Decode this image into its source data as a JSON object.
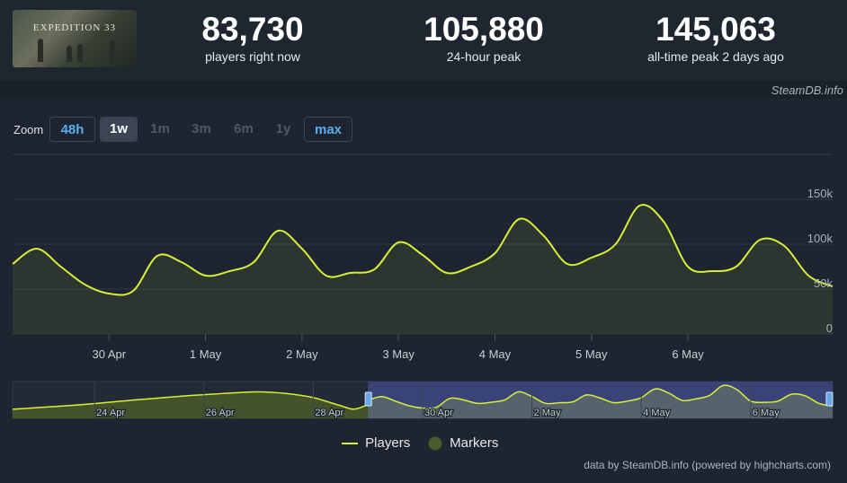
{
  "header": {
    "game_image_caption": "EXPEDITION 33",
    "stats": [
      {
        "value": "83,730",
        "label": "players right now"
      },
      {
        "value": "105,880",
        "label": "24-hour peak"
      },
      {
        "value": "145,063",
        "label": "all-time peak 2 days ago"
      }
    ],
    "site_tag": "SteamDB.info"
  },
  "zoom": {
    "label": "Zoom",
    "buttons": [
      {
        "label": "48h",
        "state": "enabled"
      },
      {
        "label": "1w",
        "state": "selected"
      },
      {
        "label": "1m",
        "state": "disabled"
      },
      {
        "label": "3m",
        "state": "disabled"
      },
      {
        "label": "6m",
        "state": "disabled"
      },
      {
        "label": "1y",
        "state": "disabled"
      },
      {
        "label": "max",
        "state": "enabled"
      }
    ]
  },
  "legend": {
    "players": "Players",
    "markers": "Markers"
  },
  "credit": "data by SteamDB.info (powered by highcharts.com)",
  "colors": {
    "line": "#d6f03a",
    "navigator_bg": "#3a4378",
    "navigator_fill": "#4a5a2a",
    "marker": "#4a5a2a"
  },
  "chart_data": {
    "type": "line",
    "series": [
      {
        "name": "Players",
        "x": [
          29.0,
          29.25,
          29.5,
          29.75,
          30.0,
          30.25,
          30.5,
          30.75,
          31.0,
          31.25,
          31.5,
          31.75,
          32.0,
          32.25,
          32.5,
          32.75,
          33.0,
          33.25,
          33.5,
          33.75,
          34.0,
          34.25,
          34.5,
          34.75,
          35.0,
          35.25,
          35.5,
          35.75,
          36.0,
          36.25,
          36.5,
          36.75,
          37.0,
          37.25,
          37.5
        ],
        "values": [
          78000,
          95000,
          75000,
          55000,
          45000,
          48000,
          87000,
          80000,
          65000,
          70000,
          80000,
          115000,
          95000,
          65000,
          68000,
          72000,
          102000,
          88000,
          68000,
          75000,
          90000,
          128000,
          110000,
          78000,
          85000,
          100000,
          143000,
          125000,
          75000,
          70000,
          75000,
          105000,
          98000,
          65000,
          53000
        ]
      }
    ],
    "x_tick_labels": [
      "30 Apr",
      "1 May",
      "2 May",
      "3 May",
      "4 May",
      "5 May",
      "6 May"
    ],
    "y_tick_labels": [
      "0",
      "50k",
      "100k",
      "150k"
    ],
    "ylim": [
      0,
      200000
    ],
    "grid": true,
    "navigator": {
      "tick_labels": [
        "24 Apr",
        "26 Apr",
        "28 Apr",
        "30 Apr",
        "2 May",
        "4 May",
        "6 May"
      ],
      "early_x": [
        22.5,
        23.5,
        24.5,
        25.5,
        26.5,
        27.0,
        27.5,
        28.0,
        28.5,
        28.75,
        29.0
      ],
      "early_values": [
        40000,
        55000,
        75000,
        95000,
        110000,
        115000,
        108000,
        90000,
        55000,
        40000,
        60000
      ]
    }
  }
}
